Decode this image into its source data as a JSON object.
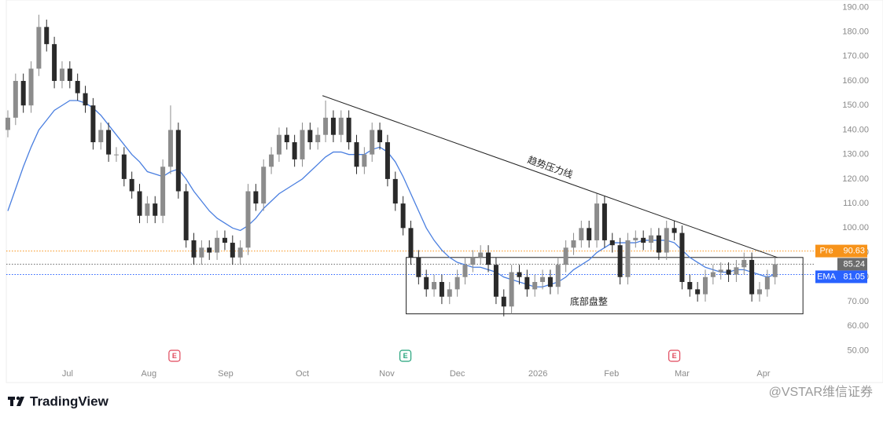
{
  "chart_data": {
    "type": "candlestick",
    "ohlc": {
      "open": [
        140,
        145,
        160,
        150,
        165,
        182,
        175,
        160,
        165,
        160,
        155,
        150,
        135,
        140,
        130,
        130,
        120,
        115,
        105,
        110,
        105,
        125,
        140,
        115,
        95,
        88,
        92,
        90,
        96,
        94,
        88,
        92,
        115,
        110,
        125,
        130,
        138,
        135,
        128,
        140,
        135,
        138,
        145,
        138,
        145,
        135,
        125,
        130,
        140,
        135,
        120,
        110,
        100,
        88,
        80,
        75,
        78,
        72,
        75,
        80,
        85,
        88,
        90,
        85,
        72,
        68,
        82,
        80,
        75,
        78,
        80,
        76,
        85,
        92,
        95,
        100,
        95,
        110,
        95,
        93,
        80,
        95,
        96,
        94,
        97,
        90,
        100,
        98,
        78,
        75,
        73,
        80,
        82,
        83,
        81,
        84,
        87,
        73,
        75,
        80
      ],
      "high": [
        148,
        163,
        163,
        168,
        187,
        185,
        178,
        168,
        168,
        163,
        158,
        153,
        143,
        143,
        133,
        133,
        123,
        118,
        113,
        113,
        128,
        150,
        143,
        118,
        98,
        95,
        95,
        99,
        99,
        97,
        95,
        118,
        118,
        128,
        133,
        141,
        141,
        138,
        143,
        143,
        141,
        152,
        148,
        148,
        148,
        138,
        133,
        143,
        143,
        138,
        123,
        113,
        103,
        91,
        83,
        81,
        81,
        78,
        83,
        88,
        91,
        93,
        93,
        88,
        75,
        85,
        85,
        83,
        81,
        83,
        83,
        88,
        95,
        98,
        103,
        103,
        114,
        113,
        98,
        96,
        98,
        99,
        99,
        100,
        100,
        103,
        103,
        101,
        81,
        78,
        83,
        85,
        86,
        86,
        87,
        90,
        90,
        78,
        83,
        88
      ],
      "low": [
        137,
        142,
        147,
        147,
        162,
        172,
        157,
        157,
        157,
        152,
        147,
        132,
        132,
        127,
        127,
        117,
        112,
        102,
        102,
        102,
        102,
        122,
        112,
        92,
        85,
        85,
        87,
        87,
        91,
        85,
        85,
        89,
        107,
        107,
        122,
        127,
        132,
        125,
        125,
        132,
        132,
        135,
        135,
        135,
        132,
        122,
        122,
        127,
        132,
        117,
        107,
        97,
        85,
        77,
        72,
        72,
        69,
        69,
        72,
        77,
        82,
        85,
        82,
        69,
        64,
        65,
        77,
        72,
        72,
        75,
        73,
        73,
        82,
        89,
        92,
        92,
        92,
        92,
        90,
        77,
        77,
        92,
        91,
        91,
        87,
        87,
        95,
        75,
        72,
        70,
        70,
        77,
        79,
        78,
        78,
        81,
        70,
        70,
        72,
        77
      ],
      "close": [
        145,
        160,
        150,
        165,
        182,
        175,
        160,
        165,
        160,
        155,
        150,
        135,
        140,
        130,
        130,
        120,
        115,
        105,
        110,
        105,
        125,
        140,
        115,
        95,
        88,
        92,
        90,
        96,
        94,
        88,
        92,
        115,
        110,
        125,
        130,
        138,
        135,
        128,
        140,
        135,
        138,
        145,
        138,
        145,
        135,
        125,
        130,
        140,
        135,
        120,
        110,
        100,
        88,
        80,
        75,
        78,
        72,
        75,
        80,
        85,
        88,
        90,
        85,
        72,
        68,
        82,
        80,
        75,
        78,
        80,
        76,
        85,
        92,
        95,
        100,
        95,
        110,
        95,
        93,
        80,
        95,
        96,
        94,
        97,
        90,
        100,
        98,
        78,
        75,
        73,
        80,
        82,
        83,
        81,
        84,
        87,
        73,
        75,
        80,
        85.24
      ]
    },
    "up_color": "#8c8c8c",
    "down_color": "#2a2a2a",
    "ema": {
      "color": "#4a7fe0",
      "values": [
        107,
        116,
        125,
        133,
        140,
        144,
        148,
        150,
        152,
        152,
        151,
        149,
        146,
        142,
        138,
        134,
        130,
        127,
        123,
        122,
        121,
        123,
        124,
        120,
        115,
        111,
        107,
        104,
        102,
        100,
        99,
        101,
        104,
        108,
        111,
        114,
        116,
        118,
        120,
        123,
        126,
        129,
        131,
        131,
        130,
        130,
        130,
        132,
        133,
        131,
        127,
        121,
        114,
        107,
        100,
        95,
        91,
        88,
        86,
        85,
        84,
        84,
        83,
        82,
        80,
        79,
        78,
        77,
        76,
        76,
        77,
        78,
        80,
        83,
        85,
        87,
        90,
        92,
        94,
        94,
        94,
        94,
        95,
        95,
        95,
        95,
        94,
        91,
        88,
        86,
        84,
        83,
        82,
        82,
        83,
        83,
        82,
        81,
        80,
        81.05
      ]
    },
    "xlim": [
      -0.2,
      104
    ],
    "xticks": [
      {
        "value": 7.7,
        "label": "Jul"
      },
      {
        "value": 18.2,
        "label": "Aug"
      },
      {
        "value": 28.1,
        "label": "Sep"
      },
      {
        "value": 38,
        "label": "Oct"
      },
      {
        "value": 48.9,
        "label": "Nov"
      },
      {
        "value": 58,
        "label": "Dec"
      },
      {
        "value": 68.4,
        "label": "2026"
      },
      {
        "value": 77.9,
        "label": "Feb"
      },
      {
        "value": 87,
        "label": "Mar"
      },
      {
        "value": 97.5,
        "label": "Apr"
      }
    ],
    "ylim": [
      37,
      193
    ],
    "yticks": [
      {
        "value": 50,
        "label": "50.00"
      },
      {
        "value": 60,
        "label": "60.00"
      },
      {
        "value": 70,
        "label": "70.00"
      },
      {
        "value": 80,
        "label": "80.00"
      },
      {
        "value": 90,
        "label": "90.00"
      },
      {
        "value": 100,
        "label": "100.00"
      },
      {
        "value": 110,
        "label": "110.00"
      },
      {
        "value": 120,
        "label": "120.00"
      },
      {
        "value": 130,
        "label": "130.00"
      },
      {
        "value": 140,
        "label": "140.00"
      },
      {
        "value": 150,
        "label": "150.00"
      },
      {
        "value": 160,
        "label": "160.00"
      },
      {
        "value": 170,
        "label": "170.00"
      },
      {
        "value": 180,
        "label": "180.00"
      },
      {
        "value": 190,
        "label": "190.00"
      }
    ],
    "grid": false,
    "price_lines": [
      {
        "name": "Pre",
        "value": 90.63,
        "color": "#f7931a"
      },
      {
        "value": 85.24,
        "color": "#6b6b6b"
      },
      {
        "name": "EMA",
        "value": 81.05,
        "color": "#2962ff"
      }
    ],
    "events": [
      {
        "x": 21.5,
        "label": "E",
        "color": "#e0475b"
      },
      {
        "x": 51.3,
        "label": "E",
        "color": "#22a27a"
      },
      {
        "x": 86,
        "label": "E",
        "color": "#e0475b"
      }
    ],
    "trendline": {
      "x": [
        40.6,
        99.3
      ],
      "y": [
        154,
        88
      ],
      "label": "趋势压力线"
    },
    "range_box": {
      "x": [
        51.4,
        102.6
      ],
      "y": [
        65,
        88
      ],
      "label": "底部盘整"
    }
  },
  "footer": {
    "brand": "TradingView",
    "watermark": "@VSTAR维信证券"
  }
}
